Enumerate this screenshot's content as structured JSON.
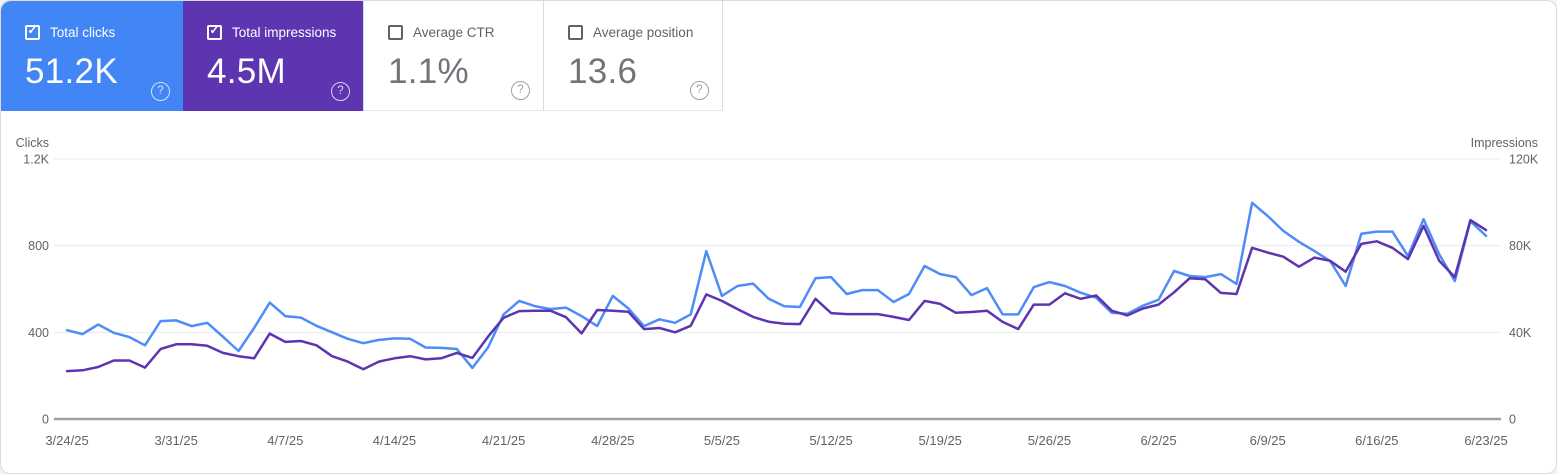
{
  "cards": [
    {
      "label": "Total clicks",
      "value": "51.2K",
      "checked": true,
      "bg": "#4285f4",
      "style": "colored"
    },
    {
      "label": "Total impressions",
      "value": "4.5M",
      "checked": true,
      "bg": "#5e35b1",
      "style": "colored"
    },
    {
      "label": "Average CTR",
      "value": "1.1%",
      "checked": false,
      "bg": "#ffffff",
      "style": "plain"
    },
    {
      "label": "Average position",
      "value": "13.6",
      "checked": false,
      "bg": "#ffffff",
      "style": "plain"
    }
  ],
  "icons": {
    "help_glyph": "?",
    "checkbox_check": "✓"
  },
  "colors": {
    "clicks_card": "#4285f4",
    "clicks_line": "#4e8df7",
    "impressions_card": "#5e35b1",
    "impressions_line": "#5e35b1",
    "grid": "#e8eaed",
    "axis_line": "#9aa0a6",
    "axis_text": "#5f6368",
    "panel_border": "#dadce0"
  },
  "chart_data": {
    "type": "line",
    "x_tick_labels": [
      "3/24/25",
      "3/31/25",
      "4/7/25",
      "4/14/25",
      "4/21/25",
      "4/28/25",
      "5/5/25",
      "5/12/25",
      "5/19/25",
      "5/26/25",
      "6/2/25",
      "6/9/25",
      "6/16/25",
      "6/23/25"
    ],
    "dates": [
      "3/24/25",
      "3/25/25",
      "3/26/25",
      "3/27/25",
      "3/28/25",
      "3/29/25",
      "3/30/25",
      "3/31/25",
      "4/1/25",
      "4/2/25",
      "4/3/25",
      "4/4/25",
      "4/5/25",
      "4/6/25",
      "4/7/25",
      "4/8/25",
      "4/9/25",
      "4/10/25",
      "4/11/25",
      "4/12/25",
      "4/13/25",
      "4/14/25",
      "4/15/25",
      "4/16/25",
      "4/17/25",
      "4/18/25",
      "4/19/25",
      "4/20/25",
      "4/21/25",
      "4/22/25",
      "4/23/25",
      "4/24/25",
      "4/25/25",
      "4/26/25",
      "4/27/25",
      "4/28/25",
      "4/29/25",
      "4/30/25",
      "5/1/25",
      "5/2/25",
      "5/3/25",
      "5/4/25",
      "5/5/25",
      "5/6/25",
      "5/7/25",
      "5/8/25",
      "5/9/25",
      "5/10/25",
      "5/11/25",
      "5/12/25",
      "5/13/25",
      "5/14/25",
      "5/15/25",
      "5/16/25",
      "5/17/25",
      "5/18/25",
      "5/19/25",
      "5/20/25",
      "5/21/25",
      "5/22/25",
      "5/23/25",
      "5/24/25",
      "5/25/25",
      "5/26/25",
      "5/27/25",
      "5/28/25",
      "5/29/25",
      "5/30/25",
      "5/31/25",
      "6/1/25",
      "6/2/25",
      "6/3/25",
      "6/4/25",
      "6/5/25",
      "6/6/25",
      "6/7/25",
      "6/8/25",
      "6/9/25",
      "6/10/25",
      "6/11/25",
      "6/12/25",
      "6/13/25",
      "6/14/25",
      "6/15/25",
      "6/16/25",
      "6/17/25",
      "6/18/25",
      "6/19/25",
      "6/20/25",
      "6/21/25",
      "6/22/25",
      "6/23/25"
    ],
    "left_axis": {
      "title": "Clicks",
      "max": 1200,
      "tick_values": [
        1200,
        800,
        400,
        0
      ],
      "tick_labels": [
        "1.2K",
        "800",
        "400",
        "0"
      ]
    },
    "right_axis": {
      "title": "Impressions",
      "max": 120000,
      "tick_values": [
        120000,
        80000,
        40000,
        0
      ],
      "tick_labels": [
        "120K",
        "80K",
        "40K",
        "0"
      ]
    },
    "series": [
      {
        "name": "Clicks",
        "axis": "left",
        "color": "#4e8df7",
        "values": [
          410,
          392,
          436,
          398,
          378,
          340,
          452,
          455,
          429,
          444,
          380,
          314,
          420,
          537,
          475,
          468,
          430,
          400,
          370,
          350,
          365,
          372,
          370,
          330,
          328,
          323,
          236,
          330,
          483,
          545,
          521,
          507,
          514,
          475,
          429,
          568,
          510,
          429,
          460,
          444,
          483,
          775,
          568,
          614,
          625,
          555,
          520,
          517,
          650,
          655,
          577,
          595,
          595,
          540,
          577,
          706,
          669,
          655,
          572,
          604,
          483,
          483,
          609,
          632,
          614,
          583,
          560,
          490,
          486,
          523,
          550,
          683,
          660,
          655,
          669,
          623,
          998,
          937,
          868,
          818,
          775,
          729,
          614,
          855,
          865,
          865,
          752,
          922,
          760,
          637,
          913,
          845
        ]
      },
      {
        "name": "Impressions",
        "axis": "right",
        "color": "#5e35b1",
        "values": [
          22100,
          22500,
          24000,
          27000,
          27000,
          23700,
          32300,
          34500,
          34500,
          33800,
          30500,
          29000,
          28000,
          39400,
          35600,
          36000,
          34000,
          29000,
          26500,
          23000,
          26500,
          28000,
          29000,
          27500,
          28000,
          30500,
          28200,
          38000,
          46700,
          49800,
          50000,
          50000,
          47000,
          39500,
          50300,
          50000,
          49500,
          41500,
          42000,
          40000,
          43000,
          57500,
          54500,
          50700,
          47100,
          44900,
          44000,
          43800,
          55500,
          48900,
          48400,
          48400,
          48400,
          47100,
          45700,
          54500,
          53100,
          49000,
          49400,
          50000,
          44800,
          41500,
          52800,
          52800,
          58000,
          55500,
          57000,
          50000,
          47800,
          51000,
          52800,
          58500,
          65000,
          64500,
          58200,
          57700,
          79000,
          76800,
          74900,
          70300,
          74500,
          73000,
          68000,
          80800,
          82000,
          79000,
          73800,
          89100,
          73000,
          65500,
          91800,
          87200
        ]
      }
    ],
    "grid": true,
    "legend_position": "none"
  }
}
